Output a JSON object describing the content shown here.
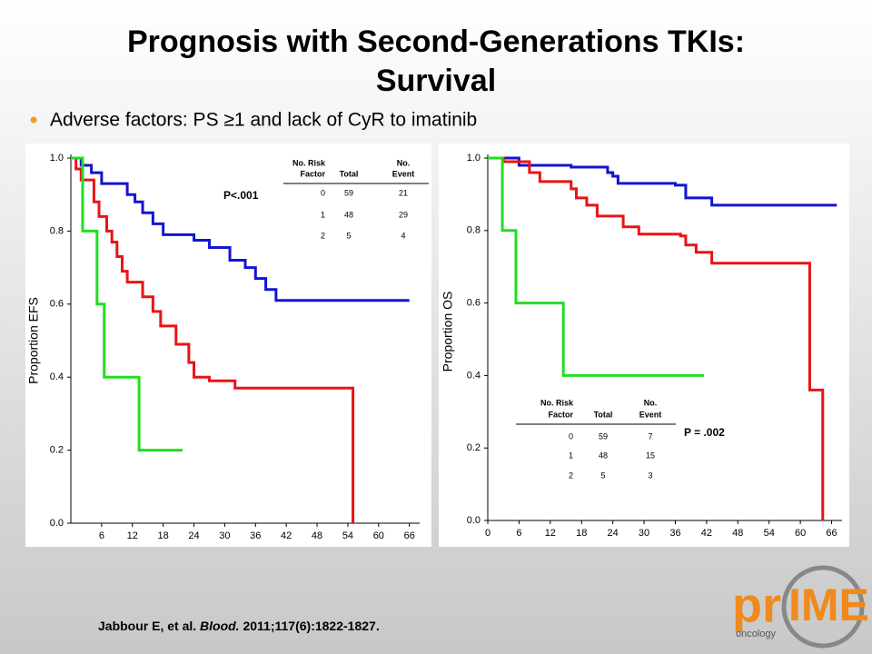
{
  "header": {
    "title_lines": [
      "Prognosis with Second-Generations TKIs:",
      "Survival"
    ],
    "bullet": "Adverse factors: PS ≥1 and lack of CyR to imatinib"
  },
  "citation": {
    "authors": "Jabbour E, et al.",
    "journal": "Blood.",
    "ref": "2011;117(6):1822-1827."
  },
  "logo": {
    "main": "pr",
    "accent": "IME",
    "sub": "oncology"
  },
  "chart_data": [
    {
      "type": "line",
      "step": true,
      "ylabel": "Proportion EFS",
      "xlim": [
        0,
        68
      ],
      "xticks": [
        6,
        12,
        18,
        24,
        30,
        36,
        42,
        48,
        54,
        60,
        66
      ],
      "ylim": [
        0,
        1
      ],
      "yticks": [
        {
          "value": 0,
          "label": "0.0"
        },
        {
          "value": 0.2,
          "label": "0.2"
        },
        {
          "value": 0.4,
          "label": "0.4"
        },
        {
          "value": 0.6,
          "label": "0.6"
        },
        {
          "value": 0.8,
          "label": "0.8"
        },
        {
          "value": 1,
          "label": "1.0"
        }
      ],
      "annotation": "P<.001",
      "table": {
        "columns": [
          [
            "No. Risk",
            "Factor"
          ],
          [
            "Total"
          ],
          [
            "No.",
            "Event"
          ]
        ],
        "rows": [
          [
            0,
            59,
            21
          ],
          [
            1,
            48,
            29
          ],
          [
            2,
            5,
            4
          ]
        ]
      },
      "series": [
        {
          "color": "#1414d2",
          "x": [
            0,
            2,
            4,
            6,
            11,
            12.5,
            14,
            16,
            18,
            24,
            27,
            31,
            34,
            36,
            38,
            40,
            66
          ],
          "values": [
            1.0,
            0.98,
            0.96,
            0.93,
            0.9,
            0.88,
            0.85,
            0.82,
            0.79,
            0.775,
            0.755,
            0.72,
            0.7,
            0.67,
            0.64,
            0.61,
            0.61
          ]
        },
        {
          "color": "#e81414",
          "x": [
            0,
            1,
            2,
            4.5,
            5.5,
            7,
            8,
            9,
            10,
            11,
            14,
            16,
            17.5,
            20.5,
            23,
            24,
            27,
            32,
            55
          ],
          "values": [
            1.0,
            0.97,
            0.94,
            0.88,
            0.84,
            0.8,
            0.77,
            0.73,
            0.69,
            0.66,
            0.62,
            0.58,
            0.54,
            0.49,
            0.44,
            0.4,
            0.39,
            0.37,
            0
          ]
        },
        {
          "color": "#22dd22",
          "x": [
            0,
            2.3,
            5.1,
            6.5,
            13.3,
            21.8
          ],
          "values": [
            1.0,
            0.8,
            0.6,
            0.4,
            0.2,
            0.2
          ]
        }
      ]
    },
    {
      "type": "line",
      "step": true,
      "ylabel": "Proportion OS",
      "xlim": [
        0,
        68
      ],
      "xticks": [
        0,
        6,
        12,
        18,
        24,
        30,
        36,
        42,
        48,
        54,
        60,
        66
      ],
      "ylim": [
        0,
        1
      ],
      "yticks": [
        {
          "value": 0,
          "label": "0.0"
        },
        {
          "value": 0.2,
          "label": "0.2"
        },
        {
          "value": 0.4,
          "label": "0.4"
        },
        {
          "value": 0.6,
          "label": "0.6"
        },
        {
          "value": 0.8,
          "label": "0.8"
        },
        {
          "value": 1,
          "label": "1.0"
        }
      ],
      "annotation": "P = .002",
      "table": {
        "columns": [
          [
            "No. Risk",
            "Factor"
          ],
          [
            "Total"
          ],
          [
            "No.",
            "Event"
          ]
        ],
        "rows": [
          [
            0,
            59,
            7
          ],
          [
            1,
            48,
            15
          ],
          [
            2,
            5,
            3
          ]
        ]
      },
      "series": [
        {
          "color": "#1414d2",
          "x": [
            0,
            6,
            16,
            23,
            24,
            25,
            36,
            38,
            43,
            67
          ],
          "values": [
            1.0,
            0.98,
            0.975,
            0.96,
            0.95,
            0.93,
            0.925,
            0.89,
            0.87,
            0.87
          ]
        },
        {
          "color": "#e81414",
          "x": [
            0,
            3,
            8,
            10,
            16,
            17,
            19,
            21,
            26,
            29,
            37,
            38,
            40,
            43,
            61.8,
            64.3
          ],
          "values": [
            1.0,
            0.99,
            0.96,
            0.935,
            0.915,
            0.89,
            0.87,
            0.84,
            0.81,
            0.79,
            0.785,
            0.76,
            0.74,
            0.71,
            0.36,
            0
          ]
        },
        {
          "color": "#22dd22",
          "x": [
            0,
            2.8,
            5.4,
            14.5,
            41.5
          ],
          "values": [
            1.0,
            0.8,
            0.6,
            0.4,
            0.4
          ]
        }
      ]
    }
  ]
}
